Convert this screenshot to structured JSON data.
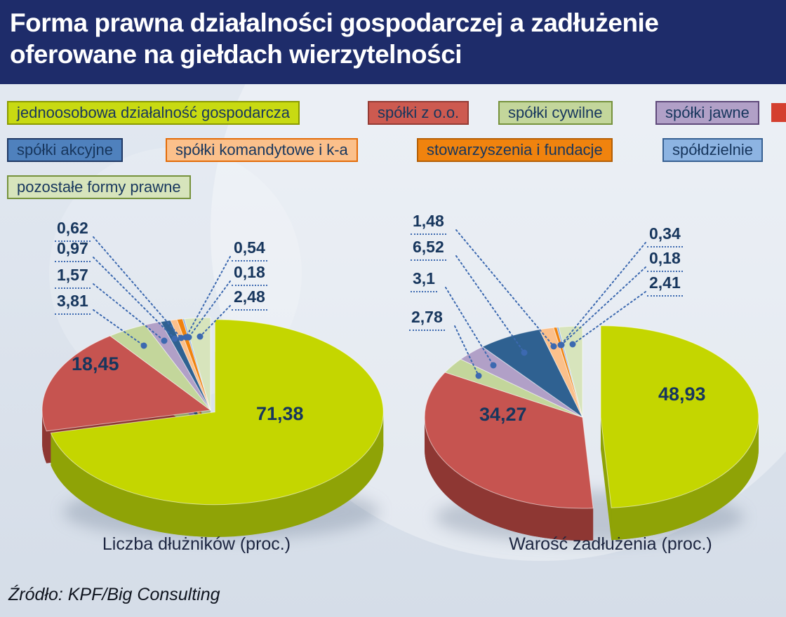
{
  "header": {
    "title_line1": "Forma prawna działalności gospodarczej a zadłużenie",
    "title_line2": "oferowane na giełdach wierzytelności",
    "bg": "#1e2c6a",
    "text_color": "#ffffff"
  },
  "decor": {
    "corner_square_color": "#d43f2f"
  },
  "leader_color": "#3c69b0",
  "value_color": "#17365d",
  "categories": [
    {
      "id": "jednoosobowa",
      "label": "jednoosobowa działalność gospodarcza",
      "legend_fill": "#c8da12",
      "legend_border": "#8a9a00",
      "pie_top": "#c4d600",
      "pie_side": "#8fa306"
    },
    {
      "id": "spolki-z-oo",
      "label": "spółki z o.o.",
      "legend_fill": "#cd5a50",
      "legend_border": "#943b34",
      "pie_top": "#c65450",
      "pie_side": "#8e3733"
    },
    {
      "id": "spolki-cywilne",
      "label": "spółki cywilne",
      "legend_fill": "#c3d69b",
      "legend_border": "#76923c",
      "pie_top": "#c3d69b",
      "pie_side": "#90a368"
    },
    {
      "id": "spolki-jawne",
      "label": "spółki jawne",
      "legend_fill": "#b1a0c7",
      "legend_border": "#5f497a",
      "pie_top": "#b1a0c7",
      "pie_side": "#7d6b99"
    },
    {
      "id": "spolki-akcyjne",
      "label": "spółki akcyjne",
      "legend_fill": "#4f81bd",
      "legend_border": "#1f3864",
      "pie_top": "#2f6191",
      "pie_side": "#1d4266"
    },
    {
      "id": "spolki-komandytowe",
      "label": "spółki komandytowe i k-a",
      "legend_fill": "#fbc08b",
      "legend_border": "#e36c09",
      "pie_top": "#fbc08b",
      "pie_side": "#c68a52"
    },
    {
      "id": "stowarzyszenia-fundacje",
      "label": "stowarzyszenia i fundacje",
      "legend_fill": "#f0830e",
      "legend_border": "#b45f06",
      "pie_top": "#f0830e",
      "pie_side": "#b35c05"
    },
    {
      "id": "spoldzielnie",
      "label": "spółdzielnie",
      "legend_fill": "#8db4e2",
      "legend_border": "#376092",
      "pie_top": "#8db4e2",
      "pie_side": "#5a82ae"
    },
    {
      "id": "pozostale",
      "label": "pozostałe formy prawne",
      "legend_fill": "#d7e4bc",
      "legend_border": "#76923c",
      "pie_top": "#d7e4bc",
      "pie_side": "#a2af89"
    }
  ],
  "chart_data": [
    {
      "type": "pie",
      "title": "Liczba dłużników (proc.)",
      "categories": [
        "jednoosobowa działalność gospodarcza",
        "spółki z o.o.",
        "spółki cywilne",
        "spółki jawne",
        "spółki akcyjne",
        "spółki komandytowe i k-a",
        "stowarzyszenia i fundacje",
        "spółdzielnie",
        "pozostałe formy prawne"
      ],
      "values": [
        71.38,
        18.45,
        3.81,
        1.57,
        0.97,
        0.62,
        0.54,
        0.18,
        2.48
      ],
      "values_display": [
        "71,38",
        "18,45",
        "3,81",
        "1,57",
        "0,97",
        "0,62",
        "0,54",
        "0,18",
        "2,48"
      ],
      "unit": "proc.",
      "style": "3d-exploded",
      "legend_position": "top"
    },
    {
      "type": "pie",
      "title": "Warość zadłużenia (proc.)",
      "categories": [
        "jednoosobowa działalność gospodarcza",
        "spółki z o.o.",
        "spółki cywilne",
        "spółki jawne",
        "spółki akcyjne",
        "spółki komandytowe i k-a",
        "stowarzyszenia i fundacje",
        "spółdzielnie",
        "pozostałe formy prawne"
      ],
      "values": [
        48.93,
        34.27,
        2.78,
        3.1,
        6.52,
        1.48,
        0.34,
        0.18,
        2.41
      ],
      "values_display": [
        "48,93",
        "34,27",
        "2,78",
        "3,1",
        "6,52",
        "1,48",
        "0,34",
        "0,18",
        "2,41"
      ],
      "unit": "proc.",
      "style": "3d-exploded",
      "legend_position": "top"
    }
  ],
  "captions": {
    "left": "Liczba dłużników (proc.)",
    "right": "Warość zadłużenia (proc.)"
  },
  "source": {
    "text": "Źródło: KPF/Big Consulting"
  }
}
